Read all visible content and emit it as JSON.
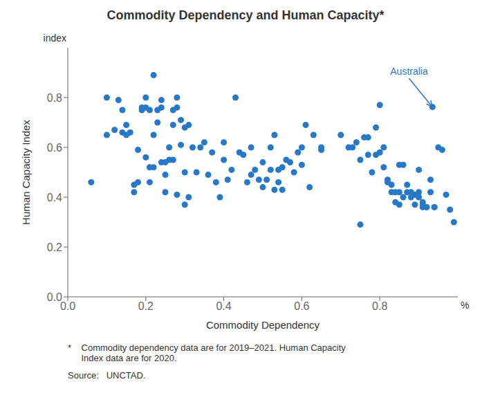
{
  "chart_data": {
    "type": "scatter",
    "title": "Commodity Dependency and Human Capacity*",
    "xlabel": "Commodity Dependency",
    "ylabel": "Human Capacity Index",
    "x_unit": "%",
    "y_unit": "index",
    "xlim": [
      0.0,
      1.0
    ],
    "ylim": [
      0.0,
      1.0
    ],
    "xticks": [
      {
        "value": 0.0,
        "label": "0.0"
      },
      0.2,
      0.4,
      0.6,
      0.8
    ],
    "yticks": [
      {
        "value": 0.0,
        "label": "0.0"
      },
      0.2,
      0.4,
      0.6,
      0.8
    ],
    "grid": false,
    "color": "#2878C8",
    "x": [
      0.06,
      0.1,
      0.1,
      0.12,
      0.13,
      0.14,
      0.14,
      0.15,
      0.15,
      0.16,
      0.17,
      0.17,
      0.18,
      0.18,
      0.19,
      0.19,
      0.2,
      0.2,
      0.2,
      0.21,
      0.21,
      0.21,
      0.22,
      0.22,
      0.22,
      0.23,
      0.23,
      0.24,
      0.24,
      0.24,
      0.25,
      0.25,
      0.25,
      0.26,
      0.26,
      0.27,
      0.27,
      0.27,
      0.28,
      0.28,
      0.28,
      0.29,
      0.29,
      0.3,
      0.3,
      0.3,
      0.31,
      0.31,
      0.32,
      0.33,
      0.34,
      0.35,
      0.36,
      0.37,
      0.38,
      0.39,
      0.4,
      0.4,
      0.41,
      0.42,
      0.43,
      0.44,
      0.45,
      0.46,
      0.47,
      0.47,
      0.48,
      0.49,
      0.5,
      0.5,
      0.51,
      0.52,
      0.52,
      0.53,
      0.53,
      0.54,
      0.54,
      0.55,
      0.55,
      0.56,
      0.57,
      0.58,
      0.59,
      0.6,
      0.6,
      0.61,
      0.62,
      0.63,
      0.65,
      0.65,
      0.7,
      0.72,
      0.73,
      0.74,
      0.75,
      0.75,
      0.76,
      0.77,
      0.77,
      0.78,
      0.79,
      0.79,
      0.8,
      0.8,
      0.81,
      0.81,
      0.82,
      0.82,
      0.83,
      0.83,
      0.84,
      0.84,
      0.85,
      0.85,
      0.85,
      0.86,
      0.86,
      0.87,
      0.87,
      0.88,
      0.88,
      0.89,
      0.89,
      0.9,
      0.9,
      0.9,
      0.91,
      0.91,
      0.91,
      0.92,
      0.92,
      0.93,
      0.93,
      0.94,
      0.94,
      0.95,
      0.96,
      0.97,
      0.98,
      0.99,
      0.935
    ],
    "values": [
      0.46,
      0.8,
      0.65,
      0.67,
      0.79,
      0.75,
      0.66,
      0.69,
      0.65,
      0.66,
      0.42,
      0.45,
      0.59,
      0.46,
      0.75,
      0.76,
      0.8,
      0.76,
      0.56,
      0.75,
      0.52,
      0.46,
      0.89,
      0.65,
      0.52,
      0.75,
      0.7,
      0.79,
      0.76,
      0.54,
      0.54,
      0.49,
      0.42,
      0.6,
      0.55,
      0.75,
      0.69,
      0.55,
      0.8,
      0.76,
      0.41,
      0.71,
      0.61,
      0.68,
      0.37,
      0.5,
      0.69,
      0.4,
      0.6,
      0.5,
      0.6,
      0.62,
      0.49,
      0.58,
      0.46,
      0.4,
      0.62,
      0.55,
      0.47,
      0.51,
      0.8,
      0.58,
      0.57,
      0.46,
      0.6,
      0.49,
      0.51,
      0.47,
      0.54,
      0.44,
      0.47,
      0.6,
      0.51,
      0.65,
      0.43,
      0.51,
      0.46,
      0.43,
      0.52,
      0.55,
      0.54,
      0.5,
      0.58,
      0.53,
      0.6,
      0.69,
      0.44,
      0.65,
      0.59,
      0.6,
      0.65,
      0.6,
      0.6,
      0.62,
      0.29,
      0.55,
      0.64,
      0.57,
      0.64,
      0.5,
      0.68,
      0.57,
      0.77,
      0.58,
      0.52,
      0.6,
      0.47,
      0.46,
      0.42,
      0.45,
      0.38,
      0.42,
      0.37,
      0.42,
      0.53,
      0.4,
      0.53,
      0.45,
      0.42,
      0.42,
      0.4,
      0.37,
      0.41,
      0.42,
      0.4,
      0.51,
      0.38,
      0.37,
      0.36,
      0.36,
      0.36,
      0.42,
      0.47,
      0.36,
      0.36,
      0.6,
      0.59,
      0.41,
      0.35,
      0.3,
      0.762
    ],
    "annotations": [
      {
        "text": "Australia",
        "x": 0.935,
        "y": 0.762,
        "color": "#2878C8"
      }
    ],
    "footnote_marker": "*",
    "footnote": "    Commodity dependency data are for 2019–2021. Human Capacity\n    Index data are for 2020.",
    "source": "Source:   UNCTAD."
  }
}
